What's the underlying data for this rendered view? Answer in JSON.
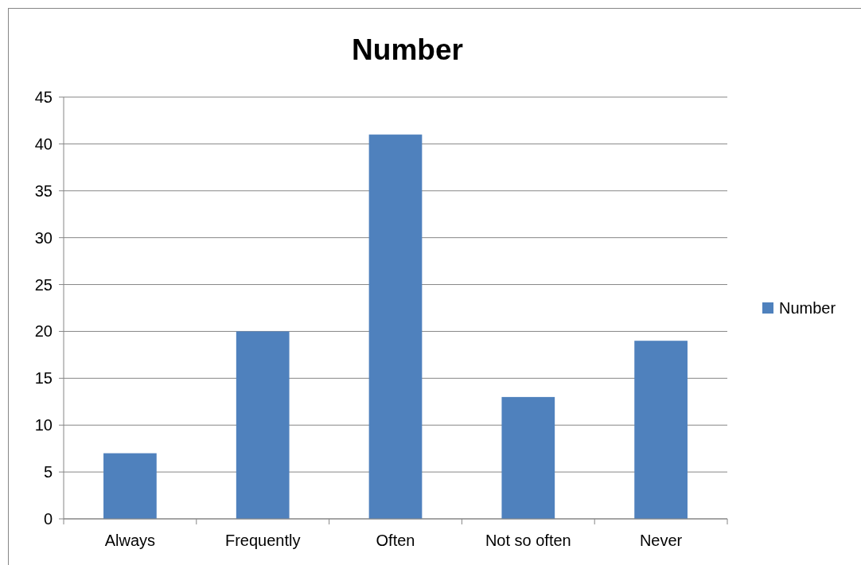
{
  "chart_data": {
    "type": "bar",
    "title": "Number",
    "categories": [
      "Always",
      "Frequently",
      "Often",
      "Not so often",
      "Never"
    ],
    "series": [
      {
        "name": "Number",
        "color": "#4f81bd",
        "values": [
          7,
          20,
          41,
          13,
          19
        ]
      }
    ],
    "ylim": [
      0,
      45
    ],
    "yticks": [
      0,
      5,
      10,
      15,
      20,
      25,
      30,
      35,
      40,
      45
    ],
    "grid": "y",
    "legend": "right"
  }
}
